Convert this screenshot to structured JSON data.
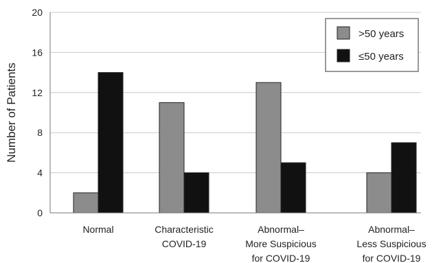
{
  "chart_data": {
    "type": "bar",
    "categories": [
      [
        "Normal"
      ],
      [
        "Characteristic",
        "COVID-19"
      ],
      [
        "Abnormal–",
        "More Suspicious",
        "for COVID-19"
      ],
      [
        "Abnormal–",
        "Less Suspicious",
        "for COVID-19"
      ]
    ],
    "series": [
      {
        "name": ">50 years",
        "values": [
          2,
          11,
          13,
          4
        ],
        "color": "#8c8c8c"
      },
      {
        "name": "≤50 years",
        "values": [
          14,
          4,
          5,
          7
        ],
        "color": "#111111"
      }
    ],
    "ylabel": "Number of Patients",
    "xlabel": "",
    "ylim": [
      0,
      20
    ],
    "yticks": [
      0,
      4,
      8,
      12,
      16,
      20
    ],
    "grid": true,
    "legend_position": "top-right"
  }
}
